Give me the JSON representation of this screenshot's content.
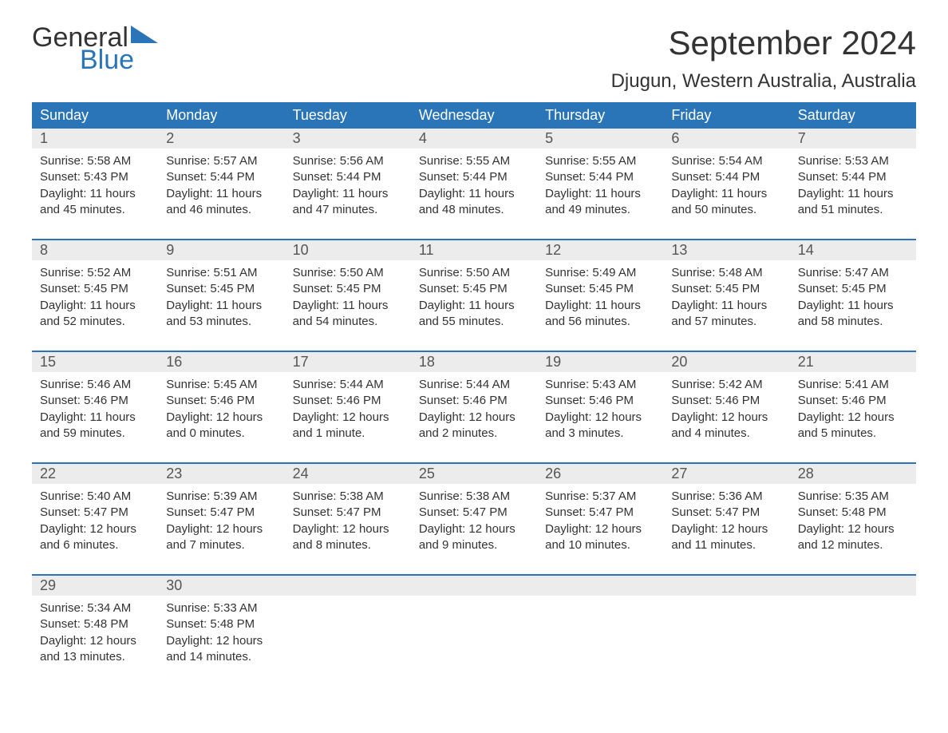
{
  "logo": {
    "word1": "General",
    "word2": "Blue"
  },
  "title": "September 2024",
  "location": "Djugun, Western Australia, Australia",
  "colors": {
    "header_bg": "#2a74b8",
    "header_text": "#ffffff",
    "daynum_bg": "#ececec",
    "week_sep": "#2a74b8",
    "text": "#333333"
  },
  "day_names": [
    "Sunday",
    "Monday",
    "Tuesday",
    "Wednesday",
    "Thursday",
    "Friday",
    "Saturday"
  ],
  "weeks": [
    {
      "nums": [
        "1",
        "2",
        "3",
        "4",
        "5",
        "6",
        "7"
      ],
      "cells": [
        {
          "sunrise": "Sunrise: 5:58 AM",
          "sunset": "Sunset: 5:43 PM",
          "day1": "Daylight: 11 hours",
          "day2": "and 45 minutes."
        },
        {
          "sunrise": "Sunrise: 5:57 AM",
          "sunset": "Sunset: 5:44 PM",
          "day1": "Daylight: 11 hours",
          "day2": "and 46 minutes."
        },
        {
          "sunrise": "Sunrise: 5:56 AM",
          "sunset": "Sunset: 5:44 PM",
          "day1": "Daylight: 11 hours",
          "day2": "and 47 minutes."
        },
        {
          "sunrise": "Sunrise: 5:55 AM",
          "sunset": "Sunset: 5:44 PM",
          "day1": "Daylight: 11 hours",
          "day2": "and 48 minutes."
        },
        {
          "sunrise": "Sunrise: 5:55 AM",
          "sunset": "Sunset: 5:44 PM",
          "day1": "Daylight: 11 hours",
          "day2": "and 49 minutes."
        },
        {
          "sunrise": "Sunrise: 5:54 AM",
          "sunset": "Sunset: 5:44 PM",
          "day1": "Daylight: 11 hours",
          "day2": "and 50 minutes."
        },
        {
          "sunrise": "Sunrise: 5:53 AM",
          "sunset": "Sunset: 5:44 PM",
          "day1": "Daylight: 11 hours",
          "day2": "and 51 minutes."
        }
      ]
    },
    {
      "nums": [
        "8",
        "9",
        "10",
        "11",
        "12",
        "13",
        "14"
      ],
      "cells": [
        {
          "sunrise": "Sunrise: 5:52 AM",
          "sunset": "Sunset: 5:45 PM",
          "day1": "Daylight: 11 hours",
          "day2": "and 52 minutes."
        },
        {
          "sunrise": "Sunrise: 5:51 AM",
          "sunset": "Sunset: 5:45 PM",
          "day1": "Daylight: 11 hours",
          "day2": "and 53 minutes."
        },
        {
          "sunrise": "Sunrise: 5:50 AM",
          "sunset": "Sunset: 5:45 PM",
          "day1": "Daylight: 11 hours",
          "day2": "and 54 minutes."
        },
        {
          "sunrise": "Sunrise: 5:50 AM",
          "sunset": "Sunset: 5:45 PM",
          "day1": "Daylight: 11 hours",
          "day2": "and 55 minutes."
        },
        {
          "sunrise": "Sunrise: 5:49 AM",
          "sunset": "Sunset: 5:45 PM",
          "day1": "Daylight: 11 hours",
          "day2": "and 56 minutes."
        },
        {
          "sunrise": "Sunrise: 5:48 AM",
          "sunset": "Sunset: 5:45 PM",
          "day1": "Daylight: 11 hours",
          "day2": "and 57 minutes."
        },
        {
          "sunrise": "Sunrise: 5:47 AM",
          "sunset": "Sunset: 5:45 PM",
          "day1": "Daylight: 11 hours",
          "day2": "and 58 minutes."
        }
      ]
    },
    {
      "nums": [
        "15",
        "16",
        "17",
        "18",
        "19",
        "20",
        "21"
      ],
      "cells": [
        {
          "sunrise": "Sunrise: 5:46 AM",
          "sunset": "Sunset: 5:46 PM",
          "day1": "Daylight: 11 hours",
          "day2": "and 59 minutes."
        },
        {
          "sunrise": "Sunrise: 5:45 AM",
          "sunset": "Sunset: 5:46 PM",
          "day1": "Daylight: 12 hours",
          "day2": "and 0 minutes."
        },
        {
          "sunrise": "Sunrise: 5:44 AM",
          "sunset": "Sunset: 5:46 PM",
          "day1": "Daylight: 12 hours",
          "day2": "and 1 minute."
        },
        {
          "sunrise": "Sunrise: 5:44 AM",
          "sunset": "Sunset: 5:46 PM",
          "day1": "Daylight: 12 hours",
          "day2": "and 2 minutes."
        },
        {
          "sunrise": "Sunrise: 5:43 AM",
          "sunset": "Sunset: 5:46 PM",
          "day1": "Daylight: 12 hours",
          "day2": "and 3 minutes."
        },
        {
          "sunrise": "Sunrise: 5:42 AM",
          "sunset": "Sunset: 5:46 PM",
          "day1": "Daylight: 12 hours",
          "day2": "and 4 minutes."
        },
        {
          "sunrise": "Sunrise: 5:41 AM",
          "sunset": "Sunset: 5:46 PM",
          "day1": "Daylight: 12 hours",
          "day2": "and 5 minutes."
        }
      ]
    },
    {
      "nums": [
        "22",
        "23",
        "24",
        "25",
        "26",
        "27",
        "28"
      ],
      "cells": [
        {
          "sunrise": "Sunrise: 5:40 AM",
          "sunset": "Sunset: 5:47 PM",
          "day1": "Daylight: 12 hours",
          "day2": "and 6 minutes."
        },
        {
          "sunrise": "Sunrise: 5:39 AM",
          "sunset": "Sunset: 5:47 PM",
          "day1": "Daylight: 12 hours",
          "day2": "and 7 minutes."
        },
        {
          "sunrise": "Sunrise: 5:38 AM",
          "sunset": "Sunset: 5:47 PM",
          "day1": "Daylight: 12 hours",
          "day2": "and 8 minutes."
        },
        {
          "sunrise": "Sunrise: 5:38 AM",
          "sunset": "Sunset: 5:47 PM",
          "day1": "Daylight: 12 hours",
          "day2": "and 9 minutes."
        },
        {
          "sunrise": "Sunrise: 5:37 AM",
          "sunset": "Sunset: 5:47 PM",
          "day1": "Daylight: 12 hours",
          "day2": "and 10 minutes."
        },
        {
          "sunrise": "Sunrise: 5:36 AM",
          "sunset": "Sunset: 5:47 PM",
          "day1": "Daylight: 12 hours",
          "day2": "and 11 minutes."
        },
        {
          "sunrise": "Sunrise: 5:35 AM",
          "sunset": "Sunset: 5:48 PM",
          "day1": "Daylight: 12 hours",
          "day2": "and 12 minutes."
        }
      ]
    },
    {
      "nums": [
        "29",
        "30",
        "",
        "",
        "",
        "",
        ""
      ],
      "cells": [
        {
          "sunrise": "Sunrise: 5:34 AM",
          "sunset": "Sunset: 5:48 PM",
          "day1": "Daylight: 12 hours",
          "day2": "and 13 minutes."
        },
        {
          "sunrise": "Sunrise: 5:33 AM",
          "sunset": "Sunset: 5:48 PM",
          "day1": "Daylight: 12 hours",
          "day2": "and 14 minutes."
        },
        {
          "sunrise": "",
          "sunset": "",
          "day1": "",
          "day2": ""
        },
        {
          "sunrise": "",
          "sunset": "",
          "day1": "",
          "day2": ""
        },
        {
          "sunrise": "",
          "sunset": "",
          "day1": "",
          "day2": ""
        },
        {
          "sunrise": "",
          "sunset": "",
          "day1": "",
          "day2": ""
        },
        {
          "sunrise": "",
          "sunset": "",
          "day1": "",
          "day2": ""
        }
      ]
    }
  ]
}
